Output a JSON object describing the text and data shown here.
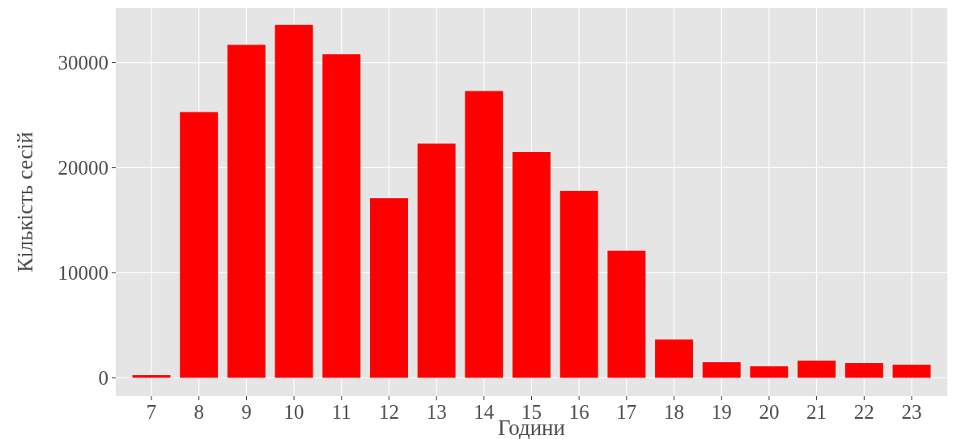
{
  "chart_data": {
    "type": "bar",
    "xlabel": "Години",
    "ylabel": "Кількість сесій",
    "categories": [
      "7",
      "8",
      "9",
      "10",
      "11",
      "12",
      "13",
      "14",
      "15",
      "16",
      "17",
      "18",
      "19",
      "20",
      "21",
      "22",
      "23"
    ],
    "values": [
      250,
      25300,
      31700,
      33600,
      30800,
      17100,
      22300,
      27300,
      21500,
      17800,
      12100,
      3650,
      1480,
      1090,
      1630,
      1400,
      1240
    ],
    "color": "#ff0000",
    "ylim": [
      -1750,
      35200
    ],
    "yticks": [
      0,
      10000,
      20000,
      30000
    ],
    "grid": true
  }
}
